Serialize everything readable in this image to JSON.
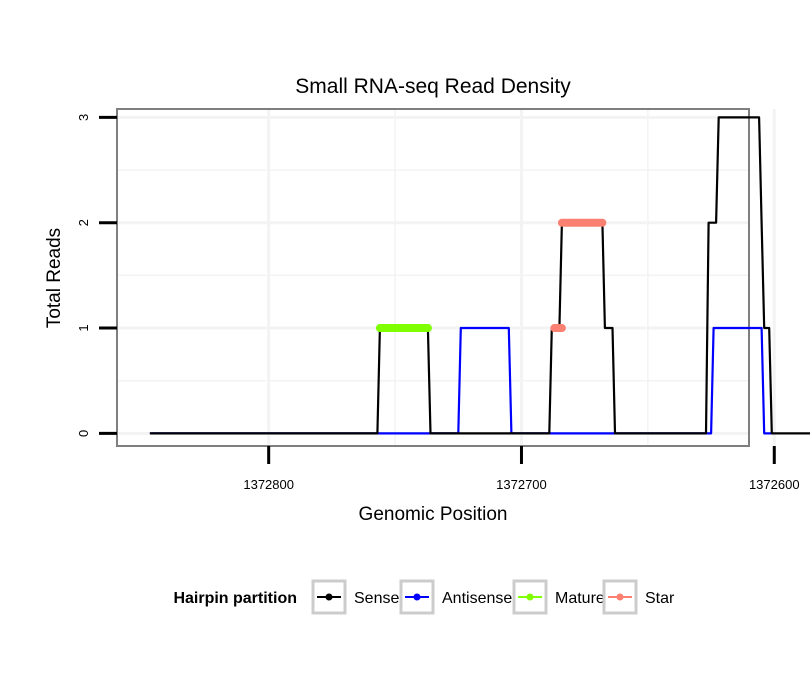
{
  "chart_data": {
    "type": "line",
    "title": "Small RNA-seq Read Density",
    "xlabel": "Genomic Position",
    "ylabel": "Total Reads",
    "x_reversed": true,
    "xlim": [
      1372860,
      1372610
    ],
    "ylim": [
      -0.12,
      3.08
    ],
    "xticks": [
      1372800,
      1372700,
      1372600
    ],
    "yticks": [
      0,
      1,
      2,
      3
    ],
    "grid": true,
    "legend_position": "bottom",
    "legend": {
      "title": "Hairpin partition",
      "entries": [
        {
          "label": "Sense",
          "color": "#000000"
        },
        {
          "label": "Antisense",
          "color": "#0000ff"
        },
        {
          "label": "Mature",
          "color": "#7fff00"
        },
        {
          "label": "Star",
          "color": "#fa8072"
        }
      ]
    },
    "series": [
      {
        "name": "Sense",
        "color": "#000000",
        "points": [
          [
            1372847,
            0
          ],
          [
            1372757,
            0
          ],
          [
            1372756,
            1
          ],
          [
            1372737,
            1
          ],
          [
            1372736,
            0
          ],
          [
            1372689,
            0
          ],
          [
            1372688,
            1
          ],
          [
            1372685,
            1
          ],
          [
            1372684,
            2
          ],
          [
            1372668,
            2
          ],
          [
            1372667,
            1
          ],
          [
            1372664,
            1
          ],
          [
            1372663,
            0
          ],
          [
            1372627,
            0
          ],
          [
            1372626,
            2
          ],
          [
            1372623,
            2
          ],
          [
            1372622,
            3
          ],
          [
            1372606,
            3
          ],
          [
            1372605,
            2
          ],
          [
            1372604,
            1
          ],
          [
            1372602,
            1
          ],
          [
            1372601,
            0
          ],
          [
            1372578,
            0
          ]
        ]
      },
      {
        "name": "Antisense",
        "color": "#0000ff",
        "points": [
          [
            1372847,
            0
          ],
          [
            1372725,
            0
          ],
          [
            1372724,
            1
          ],
          [
            1372705,
            1
          ],
          [
            1372704,
            0
          ],
          [
            1372625,
            0
          ],
          [
            1372624,
            1
          ],
          [
            1372605,
            1
          ],
          [
            1372604,
            0
          ],
          [
            1372601,
            0
          ]
        ]
      }
    ],
    "segments": [
      {
        "name": "Mature",
        "color": "#7fff00",
        "x_start": 1372756,
        "x_end": 1372737,
        "y": 1
      },
      {
        "name": "Star",
        "color": "#fa8072",
        "x_start": 1372687,
        "x_end": 1372684,
        "y": 1
      },
      {
        "name": "Star",
        "color": "#fa8072",
        "x_start": 1372684,
        "x_end": 1372668,
        "y": 2
      }
    ]
  }
}
